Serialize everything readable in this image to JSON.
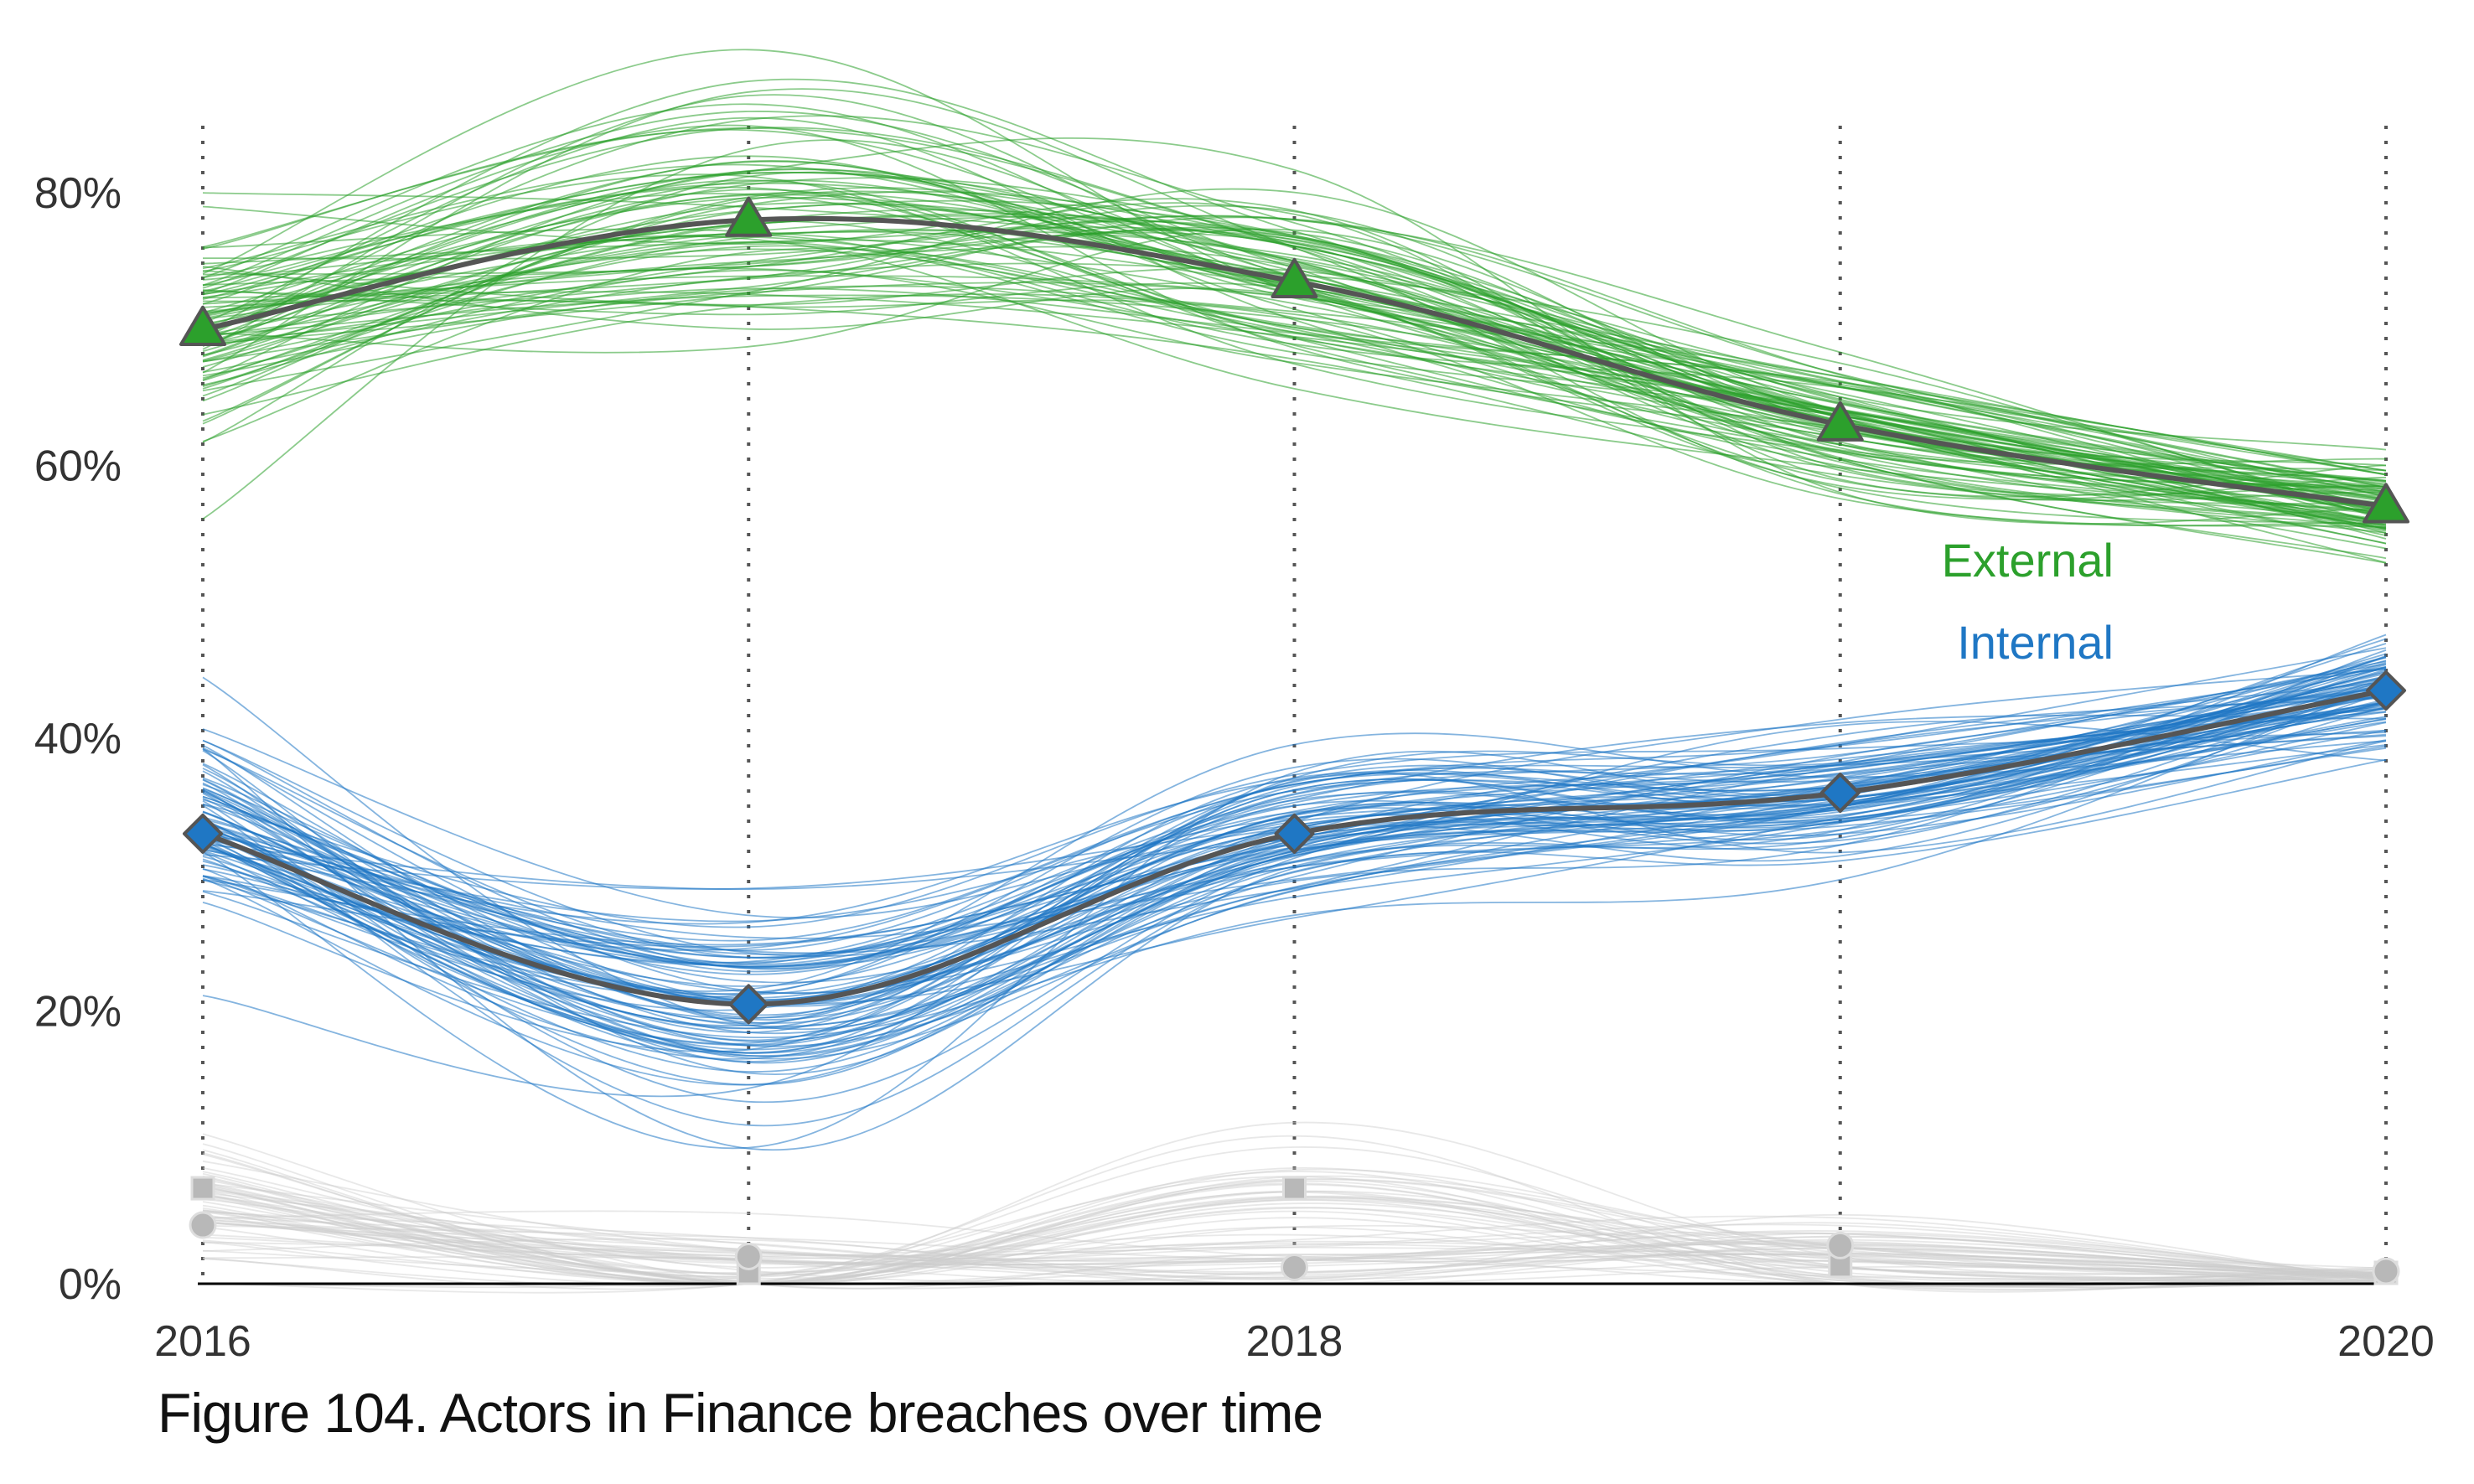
{
  "caption": "Figure 104. Actors in Finance breaches over time",
  "colors": {
    "external": "#2ca02c",
    "internal": "#1f77c4",
    "other": "#cccccc",
    "median_line": "#555555",
    "grid": "#555555",
    "axis": "#000000"
  },
  "chart_data": {
    "type": "line",
    "title": "",
    "xlabel": "",
    "ylabel": "",
    "x_ticks": [
      "2016",
      "2018",
      "2020"
    ],
    "y_ticks": [
      "0%",
      "20%",
      "40%",
      "60%",
      "80%"
    ],
    "xlim": [
      2016,
      2020
    ],
    "ylim": [
      0,
      80
    ],
    "grid": "vertical dotted at each data year",
    "x": [
      2016,
      2017,
      2018,
      2019,
      2020
    ],
    "series": [
      {
        "name": "External",
        "marker": "triangle",
        "values": [
          70,
          78,
          73.5,
          63,
          57
        ],
        "simulation_spread": [
          4,
          4.5,
          3,
          2.5,
          1.8
        ]
      },
      {
        "name": "Internal",
        "marker": "diamond",
        "values": [
          33,
          20.5,
          33,
          36,
          43.5
        ],
        "simulation_spread": [
          3.5,
          4,
          2.8,
          2.2,
          2
        ]
      },
      {
        "marker": "square",
        "values": [
          7,
          0,
          7,
          1.3,
          0.6
        ],
        "simulation_spread": [
          2.5,
          0.5,
          2,
          1,
          0.4
        ]
      },
      {
        "marker": "circle",
        "values": [
          4.3,
          2,
          1.2,
          2.8,
          0.3
        ],
        "simulation_spread": [
          2,
          1,
          1,
          1,
          0.3
        ]
      }
    ]
  }
}
